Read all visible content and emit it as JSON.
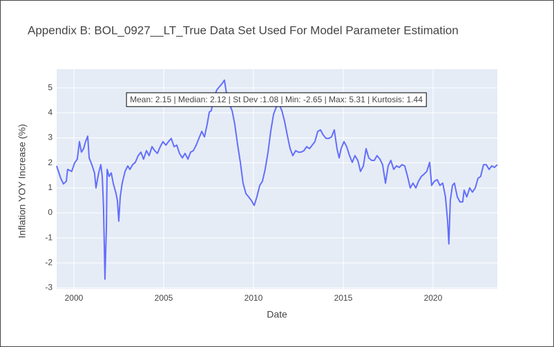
{
  "chart_data": {
    "type": "line",
    "title": "Appendix B: BOL_0927__LT_True Data Set Used For Model Parameter Estimation",
    "x_label": "Date",
    "y_label": "Inflation YOY Increase (%)",
    "annotation": "Mean: 2.15 | Median: 2.12 | St Dev :1.08 | Min: -2.65 | Max: 5.31 | Kurtosis: 1.44",
    "xlim": [
      1999.04,
      2023.58
    ],
    "xticks": [
      2000,
      2005,
      2010,
      2015,
      2020
    ],
    "ylim": [
      -3.04,
      5.75
    ],
    "yticks": [
      -3,
      -2,
      -1,
      0,
      1,
      2,
      3,
      4,
      5
    ],
    "grid": true,
    "x": [
      1999.04,
      1999.27,
      1999.42,
      1999.58,
      1999.65,
      1999.88,
      2000.04,
      2000.19,
      2000.31,
      2000.42,
      2000.54,
      2000.65,
      2000.77,
      2000.85,
      2001.0,
      2001.15,
      2001.23,
      2001.38,
      2001.5,
      2001.58,
      2001.65,
      2001.73,
      2001.81,
      2001.85,
      2001.96,
      2002.08,
      2002.19,
      2002.35,
      2002.42,
      2002.5,
      2002.58,
      2002.69,
      2002.85,
      2003.0,
      2003.12,
      2003.27,
      2003.42,
      2003.58,
      2003.73,
      2003.88,
      2004.04,
      2004.19,
      2004.35,
      2004.5,
      2004.65,
      2004.81,
      2004.96,
      2005.12,
      2005.27,
      2005.42,
      2005.58,
      2005.73,
      2005.88,
      2006.04,
      2006.19,
      2006.35,
      2006.5,
      2006.65,
      2006.81,
      2006.96,
      2007.12,
      2007.27,
      2007.42,
      2007.54,
      2007.65,
      2007.81,
      2007.96,
      2008.12,
      2008.27,
      2008.38,
      2008.5,
      2008.65,
      2008.81,
      2008.96,
      2009.12,
      2009.27,
      2009.42,
      2009.58,
      2009.73,
      2009.88,
      2010.04,
      2010.19,
      2010.35,
      2010.5,
      2010.65,
      2010.81,
      2010.96,
      2011.12,
      2011.27,
      2011.42,
      2011.58,
      2011.73,
      2011.88,
      2012.04,
      2012.19,
      2012.35,
      2012.5,
      2012.65,
      2012.81,
      2012.96,
      2013.12,
      2013.27,
      2013.42,
      2013.58,
      2013.73,
      2013.88,
      2014.04,
      2014.19,
      2014.35,
      2014.5,
      2014.65,
      2014.77,
      2014.88,
      2015.04,
      2015.19,
      2015.35,
      2015.5,
      2015.65,
      2015.81,
      2015.96,
      2016.12,
      2016.27,
      2016.42,
      2016.58,
      2016.73,
      2016.88,
      2017.04,
      2017.19,
      2017.35,
      2017.5,
      2017.65,
      2017.81,
      2017.96,
      2018.12,
      2018.27,
      2018.42,
      2018.58,
      2018.73,
      2018.88,
      2019.04,
      2019.19,
      2019.35,
      2019.5,
      2019.65,
      2019.81,
      2019.92,
      2020.08,
      2020.23,
      2020.38,
      2020.54,
      2020.69,
      2020.81,
      2020.88,
      2020.96,
      2021.08,
      2021.19,
      2021.35,
      2021.5,
      2021.65,
      2021.73,
      2021.88,
      2022.04,
      2022.19,
      2022.35,
      2022.5,
      2022.65,
      2022.81,
      2022.96,
      2023.12,
      2023.27,
      2023.42,
      2023.58
    ],
    "series": [
      {
        "color": "#636efa",
        "values": [
          1.88,
          1.38,
          1.16,
          1.27,
          1.74,
          1.66,
          2.0,
          2.15,
          2.85,
          2.43,
          2.57,
          2.85,
          3.07,
          2.2,
          1.93,
          1.6,
          1.0,
          1.6,
          1.93,
          1.46,
          0.22,
          -2.65,
          -0.6,
          1.74,
          1.46,
          1.6,
          1.19,
          0.77,
          0.5,
          -0.33,
          0.64,
          1.19,
          1.66,
          1.88,
          1.74,
          1.93,
          2.02,
          2.29,
          2.43,
          2.15,
          2.49,
          2.29,
          2.65,
          2.49,
          2.38,
          2.65,
          2.85,
          2.71,
          2.85,
          2.98,
          2.65,
          2.71,
          2.38,
          2.2,
          2.38,
          2.15,
          2.43,
          2.49,
          2.71,
          2.98,
          3.26,
          3.04,
          3.54,
          4.03,
          4.09,
          4.64,
          4.92,
          5.06,
          5.19,
          5.31,
          4.78,
          4.36,
          4.09,
          3.54,
          2.71,
          2.02,
          1.19,
          0.77,
          0.64,
          0.5,
          0.3,
          0.64,
          1.1,
          1.27,
          1.74,
          2.43,
          3.26,
          3.95,
          4.23,
          4.36,
          4.09,
          3.67,
          3.12,
          2.57,
          2.29,
          2.49,
          2.43,
          2.43,
          2.49,
          2.65,
          2.57,
          2.71,
          2.85,
          3.26,
          3.32,
          3.12,
          2.98,
          2.98,
          3.04,
          3.32,
          2.57,
          2.2,
          2.57,
          2.85,
          2.65,
          2.29,
          2.02,
          2.29,
          2.1,
          1.66,
          1.88,
          2.57,
          2.2,
          2.1,
          2.1,
          2.29,
          2.15,
          1.93,
          1.19,
          1.88,
          2.1,
          1.74,
          1.88,
          1.82,
          1.93,
          1.88,
          1.46,
          1.0,
          1.19,
          1.0,
          1.27,
          1.46,
          1.55,
          1.66,
          2.02,
          1.1,
          1.27,
          1.33,
          1.1,
          1.19,
          0.64,
          -0.33,
          -1.24,
          0.5,
          1.1,
          1.19,
          0.64,
          0.44,
          0.44,
          0.91,
          0.64,
          1.0,
          0.83,
          1.0,
          1.38,
          1.46,
          1.93,
          1.93,
          1.74,
          1.88,
          1.82,
          1.93
        ]
      }
    ]
  }
}
